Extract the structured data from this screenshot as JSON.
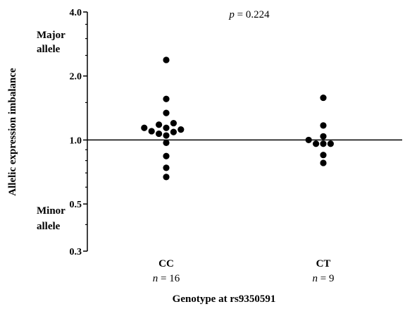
{
  "chart_data": {
    "type": "scatter",
    "title": "",
    "xlabel": "Genotype at rs9350591",
    "ylabel": "Allelic expression imbalance",
    "y_scale": "log",
    "ylim": [
      0.3,
      4.0
    ],
    "y_ticks": [
      "0.3",
      "0.5",
      "1.0",
      "2.0",
      "4.0"
    ],
    "reference_line": 1.0,
    "annotations": {
      "p_prefix": "p",
      "p_value": " = 0.224",
      "major_allele": [
        "Major",
        "allele"
      ],
      "minor_allele": [
        "Minor",
        "allele"
      ]
    },
    "categories": [
      {
        "label": "CC",
        "n_prefix": "n",
        "n_text": " = 16"
      },
      {
        "label": "CT",
        "n_prefix": "n",
        "n_text": " = 9"
      }
    ],
    "series": [
      {
        "category": "CC",
        "values": [
          2.38,
          1.56,
          1.34,
          1.2,
          1.18,
          1.14,
          1.14,
          1.12,
          1.1,
          1.09,
          1.07,
          1.05,
          0.97,
          0.84,
          0.74,
          0.67
        ]
      },
      {
        "category": "CT",
        "values": [
          1.58,
          1.17,
          1.04,
          1.0,
          0.96,
          0.96,
          0.96,
          0.85,
          0.78
        ]
      }
    ]
  }
}
